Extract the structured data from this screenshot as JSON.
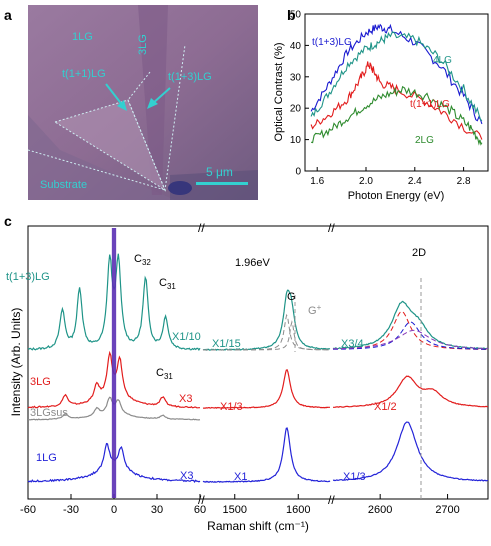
{
  "panel_labels": {
    "a": "a",
    "b": "b",
    "c": "c"
  },
  "colors": {
    "teal": "#1f9488",
    "blue": "#2424d8",
    "red": "#e21d1d",
    "gray": "#8c8c8c",
    "green": "#2e8b2e",
    "darkblue": "#1a1ad0",
    "cyan": "#33d0d0",
    "photo_bg": "#8c6a8e",
    "photo_light": "#a07ea2",
    "substrate": "#7a5f86"
  },
  "panel_a": {
    "labels": {
      "1LG": "1LG",
      "3LG": "3LG",
      "t11": "t(1+1)LG",
      "t13": "t(1+3)LG",
      "substrate": "Substrate",
      "scale": "5 μm"
    }
  },
  "chart_data": [
    {
      "panel": "b",
      "type": "line",
      "xlabel": "Photon Energy (eV)",
      "ylabel": "Optical Contrast (%)",
      "xlim": [
        1.5,
        3.0
      ],
      "ylim": [
        0,
        50
      ],
      "xticks": [
        1.6,
        2.0,
        2.4,
        2.8
      ],
      "yticks": [
        0,
        10,
        20,
        30,
        40,
        50
      ],
      "x_tick_labels": [
        "1.6",
        "2.0",
        "2.4",
        "2.8"
      ],
      "y_tick_labels": [
        "0",
        "10",
        "20",
        "30",
        "40",
        "50"
      ],
      "series": [
        {
          "name": "t(1+3)LG",
          "color": "#1a1ad0",
          "x": [
            1.55,
            1.7,
            1.85,
            2.0,
            2.1,
            2.2,
            2.4,
            2.6,
            2.8,
            2.95
          ],
          "y": [
            19,
            28,
            38,
            44,
            46,
            45,
            41,
            34,
            24,
            15
          ]
        },
        {
          "name": "4LG",
          "color": "#1f9488",
          "x": [
            1.55,
            1.7,
            1.85,
            2.0,
            2.1,
            2.2,
            2.4,
            2.6,
            2.8,
            2.95
          ],
          "y": [
            17,
            25,
            34,
            39,
            41,
            43,
            42,
            36,
            26,
            16
          ]
        },
        {
          "name": "t(1+1)LG",
          "color": "#e21d1d",
          "x": [
            1.55,
            1.7,
            1.85,
            1.95,
            2.02,
            2.06,
            2.12,
            2.25,
            2.5,
            2.7,
            2.95
          ],
          "y": [
            14,
            18,
            23,
            29,
            34,
            32,
            28,
            26,
            22,
            17,
            10
          ]
        },
        {
          "name": "2LG",
          "color": "#2e8b2e",
          "x": [
            1.55,
            1.7,
            1.85,
            2.0,
            2.15,
            2.3,
            2.5,
            2.7,
            2.85,
            2.95
          ],
          "y": [
            10,
            13,
            17,
            21,
            24,
            26,
            24,
            19,
            14,
            9
          ]
        }
      ]
    },
    {
      "panel": "c",
      "type": "line",
      "xlabel": "Raman shift (cm⁻¹)",
      "ylabel": "Intensity (Arb. Units)",
      "segments": [
        {
          "range": [
            -60,
            60
          ],
          "ticks": [
            -60,
            -30,
            0,
            30,
            60
          ]
        },
        {
          "range": [
            1450,
            1650
          ],
          "ticks": [
            1500,
            1600
          ]
        },
        {
          "range": [
            2530,
            2760
          ],
          "ticks": [
            2600,
            2700
          ]
        }
      ],
      "excitation": "1.96eV",
      "peak_labels": {
        "C32": "C",
        "C32_sub": "32",
        "C31": "C",
        "C31_sub": "31",
        "G": "G",
        "Gplus": "G",
        "Gplus_sup": "+",
        "twoD": "2D"
      },
      "series": [
        {
          "name": "t(1+3)LG",
          "color": "#1f9488",
          "scales": [
            "X1/10",
            "X1/15",
            "X3/4"
          ],
          "peaks": [
            [
              -36,
              0.55
            ],
            [
              -24,
              0.85
            ],
            [
              -3,
              1.2
            ],
            [
              3,
              1.2
            ],
            [
              22,
              1.0
            ],
            [
              36,
              0.45
            ],
            [
              1582,
              0.6
            ],
            [
              1589,
              0.45
            ],
            [
              2632,
              0.6
            ],
            [
              2657,
              0.25
            ]
          ]
        },
        {
          "name": "3LG",
          "color": "#e21d1d",
          "scales": [
            "X3",
            "X1/3",
            "X1/2"
          ],
          "peaks": [
            [
              -34,
              0.25
            ],
            [
              -12,
              0.35
            ],
            [
              -3,
              0.9
            ],
            [
              4,
              0.8
            ],
            [
              34,
              0.2
            ],
            [
              1582,
              0.85
            ],
            [
              2640,
              0.65
            ],
            [
              2678,
              0.3
            ]
          ]
        },
        {
          "name": "3LGsus",
          "color": "#8c8c8c",
          "peaks": [
            [
              -34,
              0.2
            ],
            [
              -12,
              0.3
            ],
            [
              -3,
              0.6
            ],
            [
              3,
              0.5
            ],
            [
              34,
              0.15
            ]
          ]
        },
        {
          "name": "1LG",
          "color": "#2424d8",
          "scales": [
            "X3",
            "X1",
            "X1/3"
          ],
          "peaks": [
            [
              -5,
              0.4
            ],
            [
              5,
              0.35
            ],
            [
              1582,
              0.9
            ],
            [
              2640,
              1.0
            ]
          ]
        }
      ],
      "tick_labels_1": [
        "-60",
        "-30",
        "0",
        "30",
        "60"
      ],
      "tick_labels_2": [
        "1500",
        "1600"
      ],
      "tick_labels_3": [
        "2600",
        "2700"
      ]
    }
  ]
}
